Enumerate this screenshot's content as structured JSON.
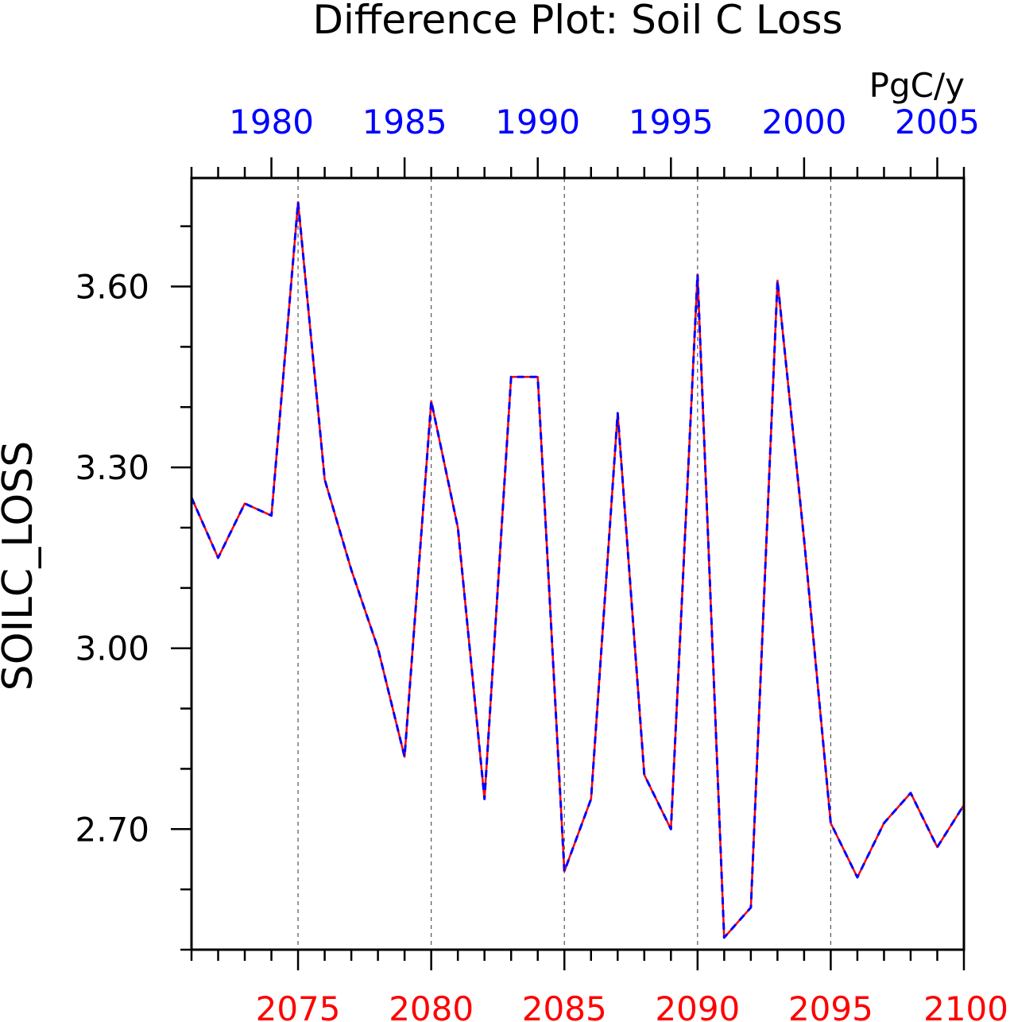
{
  "chart_data": {
    "type": "line",
    "title": "Difference Plot: Soil C Loss",
    "units": "PgC/y",
    "ylabel": "SOILC_LOSS",
    "xlabel": "",
    "ylim": [
      2.5,
      3.78
    ],
    "y_major_ticks": [
      2.7,
      3.0,
      3.3,
      3.6
    ],
    "y_minor_ticks": [
      2.5,
      2.6,
      2.8,
      2.9,
      3.1,
      3.2,
      3.4,
      3.5,
      3.7
    ],
    "y_tick_labels": [
      "2.70",
      "3.00",
      "3.30",
      "3.60"
    ],
    "xlim": [
      2071,
      2100
    ],
    "x_bottom_ticks": [
      2075,
      2080,
      2085,
      2090,
      2095,
      2100
    ],
    "x_bottom_tick_labels": [
      "2075",
      "2080",
      "2085",
      "2090",
      "2095",
      "2100"
    ],
    "x_bottom_color": "#ff0000",
    "x_top_offset_years": -94,
    "x_top_ticks": [
      1980,
      1985,
      1990,
      1995,
      2000,
      2005
    ],
    "x_top_tick_labels": [
      "1980",
      "1985",
      "1990",
      "1995",
      "2000",
      "2005"
    ],
    "x_top_color": "#0000ff",
    "grid": "vertical dashed at major bottom ticks",
    "x": [
      2071,
      2072,
      2073,
      2074,
      2075,
      2076,
      2077,
      2078,
      2079,
      2080,
      2081,
      2082,
      2083,
      2084,
      2085,
      2086,
      2087,
      2088,
      2089,
      2090,
      2091,
      2092,
      2093,
      2094,
      2095,
      2096,
      2097,
      2098,
      2099,
      2100
    ],
    "series": [
      {
        "color": "#ff0000",
        "style": "solid",
        "values": [
          3.25,
          3.15,
          3.24,
          3.22,
          3.74,
          3.28,
          3.13,
          3.0,
          2.82,
          3.41,
          3.2,
          2.75,
          3.45,
          3.45,
          2.63,
          2.75,
          3.39,
          2.79,
          2.7,
          3.62,
          2.52,
          2.57,
          3.61,
          3.18,
          2.71,
          2.62,
          2.71,
          2.76,
          2.67,
          2.74
        ]
      },
      {
        "color": "#0000ff",
        "style": "dashed",
        "values": [
          3.25,
          3.15,
          3.24,
          3.22,
          3.74,
          3.28,
          3.13,
          3.0,
          2.82,
          3.41,
          3.2,
          2.75,
          3.45,
          3.45,
          2.63,
          2.75,
          3.39,
          2.79,
          2.7,
          3.62,
          2.52,
          2.57,
          3.61,
          3.18,
          2.71,
          2.62,
          2.71,
          2.76,
          2.67,
          2.74
        ]
      }
    ]
  }
}
